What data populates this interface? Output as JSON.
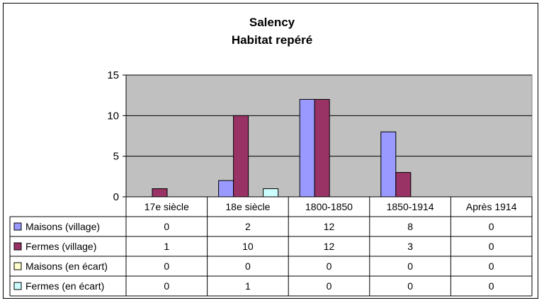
{
  "chart_data": {
    "type": "bar",
    "title": "Salency",
    "subtitle": "Habitat repéré",
    "categories": [
      "17e siècle",
      "18e siècle",
      "1800-1850",
      "1850-1914",
      "Après 1914"
    ],
    "ylim": [
      0,
      15
    ],
    "yticks": [
      0,
      5,
      10,
      15
    ],
    "grid": true,
    "legend": "data-table",
    "series": [
      {
        "name": "Maisons (village)",
        "color": "#9999ff",
        "values": [
          0,
          2,
          12,
          8,
          0
        ]
      },
      {
        "name": "Fermes (village)",
        "color": "#993366",
        "values": [
          1,
          10,
          12,
          3,
          0
        ]
      },
      {
        "name": "Maisons (en écart)",
        "color": "#ffffcc",
        "values": [
          0,
          0,
          0,
          0,
          0
        ]
      },
      {
        "name": "Fermes (en écart)",
        "color": "#ccffff",
        "values": [
          0,
          1,
          0,
          0,
          0
        ]
      }
    ],
    "plot_background": "#c0c0c0"
  }
}
